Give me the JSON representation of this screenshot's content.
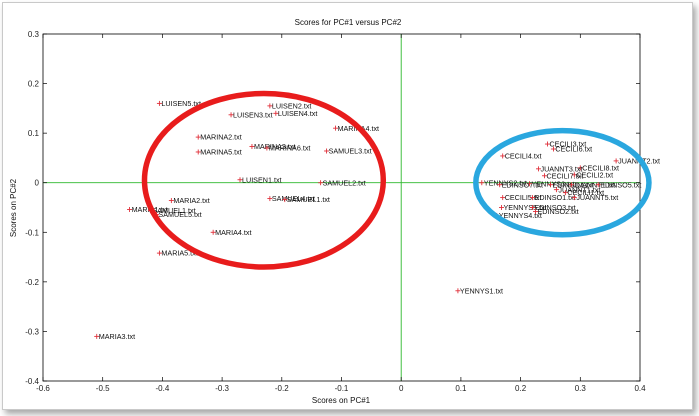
{
  "chart_data": {
    "type": "scatter",
    "title": "Scores for PC#1 versus PC#2",
    "xlabel": "Scores on PC#1",
    "ylabel": "Scores on PC#2",
    "xlim": [
      -0.6,
      0.4
    ],
    "ylim": [
      -0.4,
      0.3
    ],
    "xticks": [
      "-0.6",
      "-0.5",
      "-0.4",
      "-0.3",
      "-0.2",
      "-0.1",
      "0",
      "0.1",
      "0.2",
      "0.3",
      "0.4"
    ],
    "yticks": [
      "0.3",
      "0.2",
      "0.1",
      "0",
      "-0.1",
      "-0.2",
      "-0.3",
      "-0.4"
    ],
    "grid": false,
    "reference_lines": {
      "x": 0,
      "y": 0,
      "color": "#2db82d"
    },
    "marker": {
      "symbol": "+",
      "color": "#e0303a"
    },
    "points": [
      {
        "label": "LUISEN5.txt",
        "x": -0.405,
        "y": 0.16
      },
      {
        "label": "LUISEN2.txt",
        "x": -0.22,
        "y": 0.155
      },
      {
        "label": "LUISEN3.txt",
        "x": -0.285,
        "y": 0.137
      },
      {
        "label": "LUISEN4.txt",
        "x": -0.21,
        "y": 0.14
      },
      {
        "label": "MARINA4.txt",
        "x": -0.11,
        "y": 0.11
      },
      {
        "label": "MARINA2.txt",
        "x": -0.34,
        "y": 0.092
      },
      {
        "label": "MARINA3.txt",
        "x": -0.25,
        "y": 0.073
      },
      {
        "label": "MARINA6.txt",
        "x": -0.225,
        "y": 0.07
      },
      {
        "label": "MARINA5.txt",
        "x": -0.34,
        "y": 0.062
      },
      {
        "label": "SAMUEL3.txt",
        "x": -0.125,
        "y": 0.064
      },
      {
        "label": "LUISEN1.txt",
        "x": -0.27,
        "y": 0.006
      },
      {
        "label": "SAMUEL2.txt",
        "x": -0.135,
        "y": 0.0
      },
      {
        "label": "MARIA2.txt",
        "x": -0.385,
        "y": -0.036
      },
      {
        "label": "SAMUEL4.txt",
        "x": -0.22,
        "y": -0.032
      },
      {
        "label": "SAMUEL1.txt",
        "x": -0.195,
        "y": -0.034
      },
      {
        "label": "MARIA1.txt",
        "x": -0.455,
        "y": -0.054
      },
      {
        "label": "SAMUEL1.txt",
        "x": -0.42,
        "y": -0.056
      },
      {
        "label": "SAMUEL5.txt",
        "x": -0.41,
        "y": -0.064
      },
      {
        "label": "MARIA4.txt",
        "x": -0.315,
        "y": -0.1
      },
      {
        "label": "MARIA5.txt",
        "x": -0.405,
        "y": -0.142
      },
      {
        "label": "MARIA3.txt",
        "x": -0.51,
        "y": -0.31
      },
      {
        "label": "YENNYS1.txt",
        "x": 0.095,
        "y": -0.218
      },
      {
        "label": "CECILI3.txt",
        "x": 0.245,
        "y": 0.078
      },
      {
        "label": "CECILI6.txt",
        "x": 0.255,
        "y": 0.068
      },
      {
        "label": "CECILI4.txt",
        "x": 0.17,
        "y": 0.054
      },
      {
        "label": "JUANNT2.txt",
        "x": 0.36,
        "y": 0.044
      },
      {
        "label": "CECILI8.txt",
        "x": 0.3,
        "y": 0.03
      },
      {
        "label": "JUANNT3.txt",
        "x": 0.23,
        "y": 0.028
      },
      {
        "label": "CECILI2.txt",
        "x": 0.29,
        "y": 0.016
      },
      {
        "label": "CECILI7.txt",
        "x": 0.24,
        "y": 0.014
      },
      {
        "label": "YENNYS2.txt",
        "x": 0.135,
        "y": 0.0
      },
      {
        "label": "YENNYS3.txt",
        "x": 0.215,
        "y": -0.002
      },
      {
        "label": "EDINSO7.txt",
        "x": 0.165,
        "y": -0.004
      },
      {
        "label": "EDINSO4.txt",
        "x": 0.25,
        "y": -0.004
      },
      {
        "label": "JUANNT1.txt",
        "x": 0.285,
        "y": -0.004
      },
      {
        "label": "EDINSO5.txt",
        "x": 0.33,
        "y": -0.004
      },
      {
        "label": "JUANNT1.txt",
        "x": 0.26,
        "y": -0.014
      },
      {
        "label": "CECILI1.txt",
        "x": 0.275,
        "y": -0.02
      },
      {
        "label": "CECILI5.txt",
        "x": 0.17,
        "y": -0.03
      },
      {
        "label": "EDINSO1.txt",
        "x": 0.22,
        "y": -0.03
      },
      {
        "label": "JUANNT5.txt",
        "x": 0.29,
        "y": -0.03
      },
      {
        "label": "YENNYS5.txt",
        "x": 0.168,
        "y": -0.05
      },
      {
        "label": "EDINSO3.txt",
        "x": 0.22,
        "y": -0.05
      },
      {
        "label": "YENNYS4.txt",
        "x": 0.16,
        "y": -0.066
      },
      {
        "label": "EDINSO2.txt",
        "x": 0.225,
        "y": -0.058
      }
    ],
    "annotations": [
      {
        "shape": "ellipse",
        "color": "#e81c1c",
        "cx": -0.23,
        "cy": 0.005,
        "rx": 0.2,
        "ry": 0.175
      },
      {
        "shape": "ellipse",
        "color": "#2aa7df",
        "cx": 0.27,
        "cy": 0.0,
        "rx": 0.145,
        "ry": 0.105
      }
    ]
  }
}
